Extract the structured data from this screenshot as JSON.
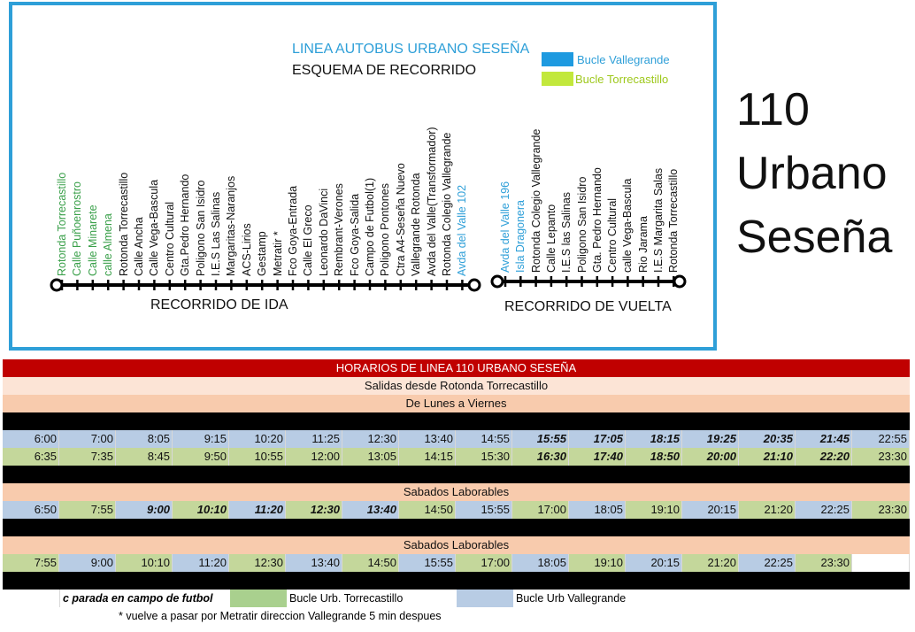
{
  "map": {
    "title": "LINEA AUTOBUS URBANO SESEÑA",
    "subtitle": "ESQUEMA DE RECORRIDO",
    "legend": [
      {
        "label": "Bucle Vallegrande",
        "color": "#1e9ae0"
      },
      {
        "label": "Bucle Torrecastillo",
        "color": "#c2e83c"
      }
    ],
    "ida_label": "RECORRIDO DE IDA",
    "vuelta_label": "RECORRIDO DE VUELTA",
    "stops_ida": [
      {
        "name": "Rotonda Torrecastillo",
        "color": "#3aa04a"
      },
      {
        "name": "Calle Puñoenrostro",
        "color": "#3aa04a"
      },
      {
        "name": "Calle Minarete",
        "color": "#3aa04a"
      },
      {
        "name": "calle Almena",
        "color": "#3aa04a"
      },
      {
        "name": "Rotonda Torrecastillo",
        "color": "#111111"
      },
      {
        "name": "Calle Ancha",
        "color": "#111111"
      },
      {
        "name": "Calle Vega-Bascula",
        "color": "#111111"
      },
      {
        "name": "Centro Cultural",
        "color": "#111111"
      },
      {
        "name": "Gta.Pedro Hernando",
        "color": "#111111"
      },
      {
        "name": "Poligono San Isidro",
        "color": "#111111"
      },
      {
        "name": "I.E.S Las Salinas",
        "color": "#111111"
      },
      {
        "name": "Margaritas-Naranjos",
        "color": "#111111"
      },
      {
        "name": "ACS-Lirios",
        "color": "#111111"
      },
      {
        "name": "Gestamp",
        "color": "#111111"
      },
      {
        "name": "Metratir *",
        "color": "#111111"
      },
      {
        "name": "Fco Goya-Entrada",
        "color": "#111111"
      },
      {
        "name": "Calle El Greco",
        "color": "#111111"
      },
      {
        "name": "Leonardo DaVinci",
        "color": "#111111"
      },
      {
        "name": "Rembrant-Verones",
        "color": "#111111"
      },
      {
        "name": "Fco Goya-Salida",
        "color": "#111111"
      },
      {
        "name": "Campo de Futbol(1)",
        "color": "#111111"
      },
      {
        "name": "Poligono Pontones",
        "color": "#111111"
      },
      {
        "name": "Ctra A4-Seseña Nuevo",
        "color": "#111111"
      },
      {
        "name": "Vallegrande Rotonda",
        "color": "#111111"
      },
      {
        "name": "Avda del Valle(Transformador)",
        "color": "#111111"
      },
      {
        "name": "Rotonda Colegio Vallegrande",
        "color": "#111111"
      },
      {
        "name": "Avda del Valle 102",
        "color": "#2e9fd8"
      }
    ],
    "stops_vuelta": [
      {
        "name": "Avda del Valle 196",
        "color": "#2e9fd8"
      },
      {
        "name": "Isla Dragonera",
        "color": "#2e9fd8"
      },
      {
        "name": "Rotonda Colegio Vallegrande",
        "color": "#111111"
      },
      {
        "name": "Calle Lepanto",
        "color": "#111111"
      },
      {
        "name": "I.E.S las Salinas",
        "color": "#111111"
      },
      {
        "name": "Poligono San Isidro",
        "color": "#111111"
      },
      {
        "name": "Gta. Pedro Hernando",
        "color": "#111111"
      },
      {
        "name": "Centro Cultural",
        "color": "#111111"
      },
      {
        "name": "calle Vega-Bascula",
        "color": "#111111"
      },
      {
        "name": "Rio Jarama",
        "color": "#111111"
      },
      {
        "name": "I.E.S Margarita Salas",
        "color": "#111111"
      },
      {
        "name": "Rotonda Torrecastillo",
        "color": "#111111"
      }
    ]
  },
  "heading": {
    "number": "110",
    "line1": "Urbano",
    "line2": "Seseña"
  },
  "schedule": {
    "title": "HORARIOS DE LINEA 110 URBANO SESEÑA",
    "title_bg": "#c00000",
    "salidas": "Salidas desde Rotonda Torrecastillo",
    "weekdays_label": "De Lunes a Viernes",
    "weekday_row1": [
      {
        "t": "6:00",
        "c": "b"
      },
      {
        "t": "7:00",
        "c": "b"
      },
      {
        "t": "8:05",
        "c": "b"
      },
      {
        "t": "9:15",
        "c": "b"
      },
      {
        "t": "10:20",
        "c": "b"
      },
      {
        "t": "11:25",
        "c": "b"
      },
      {
        "t": "12:30",
        "c": "b"
      },
      {
        "t": "13:40",
        "c": "b"
      },
      {
        "t": "14:55",
        "c": "b"
      },
      {
        "t": "15:55",
        "c": "b",
        "i": true
      },
      {
        "t": "17:05",
        "c": "b",
        "i": true
      },
      {
        "t": "18:15",
        "c": "b",
        "i": true
      },
      {
        "t": "19:25",
        "c": "b",
        "i": true
      },
      {
        "t": "20:35",
        "c": "b",
        "i": true
      },
      {
        "t": "21:45",
        "c": "b",
        "i": true
      },
      {
        "t": "22:55",
        "c": "b"
      }
    ],
    "weekday_row2": [
      {
        "t": "6:35",
        "c": "g"
      },
      {
        "t": "7:35",
        "c": "g"
      },
      {
        "t": "8:45",
        "c": "g"
      },
      {
        "t": "9:50",
        "c": "g"
      },
      {
        "t": "10:55",
        "c": "g"
      },
      {
        "t": "12:00",
        "c": "g"
      },
      {
        "t": "13:05",
        "c": "g"
      },
      {
        "t": "14:15",
        "c": "g"
      },
      {
        "t": "15:30",
        "c": "g"
      },
      {
        "t": "16:30",
        "c": "g",
        "i": true
      },
      {
        "t": "17:40",
        "c": "g",
        "i": true
      },
      {
        "t": "18:50",
        "c": "g",
        "i": true
      },
      {
        "t": "20:00",
        "c": "g",
        "i": true
      },
      {
        "t": "21:10",
        "c": "g",
        "i": true
      },
      {
        "t": "22:20",
        "c": "g",
        "i": true
      },
      {
        "t": "23:30",
        "c": "g"
      }
    ],
    "sat_label_1": "Sabados Laborables",
    "sat_row1": [
      {
        "t": "6:50",
        "c": "b"
      },
      {
        "t": "7:55",
        "c": "g"
      },
      {
        "t": "9:00",
        "c": "b",
        "i": true
      },
      {
        "t": "10:10",
        "c": "g",
        "i": true
      },
      {
        "t": "11:20",
        "c": "b",
        "i": true
      },
      {
        "t": "12:30",
        "c": "g",
        "i": true
      },
      {
        "t": "13:40",
        "c": "b",
        "i": true
      },
      {
        "t": "14:50",
        "c": "g"
      },
      {
        "t": "15:55",
        "c": "b"
      },
      {
        "t": "17:00",
        "c": "g"
      },
      {
        "t": "18:05",
        "c": "b"
      },
      {
        "t": "19:10",
        "c": "g"
      },
      {
        "t": "20:15",
        "c": "b"
      },
      {
        "t": "21:20",
        "c": "g"
      },
      {
        "t": "22:25",
        "c": "b"
      },
      {
        "t": "23:30",
        "c": "g"
      }
    ],
    "sat_label_2": "Sabados Laborables",
    "sat_row2": [
      {
        "t": "7:55",
        "c": "g"
      },
      {
        "t": "9:00",
        "c": "b"
      },
      {
        "t": "10:10",
        "c": "g"
      },
      {
        "t": "11:20",
        "c": "b"
      },
      {
        "t": "12:30",
        "c": "g"
      },
      {
        "t": "13:40",
        "c": "b"
      },
      {
        "t": "14:50",
        "c": "g"
      },
      {
        "t": "15:55",
        "c": "b"
      },
      {
        "t": "17:00",
        "c": "g"
      },
      {
        "t": "18:05",
        "c": "b"
      },
      {
        "t": "19:10",
        "c": "g"
      },
      {
        "t": "20:15",
        "c": "b"
      },
      {
        "t": "21:20",
        "c": "g"
      },
      {
        "t": "22:25",
        "c": "b"
      },
      {
        "t": "23:30",
        "c": "g"
      },
      {
        "t": "",
        "c": "w"
      }
    ],
    "note_futbol": "c parada en campo de futbol",
    "legend_torre": "Bucle Urb. Torrecastillo",
    "legend_valle": "Bucle Urb Vallegrande",
    "note_metratir": "* vuelve a pasar por Metratir direccion Vallegrande 5 min despues",
    "colors": {
      "blue": "#b8cce4",
      "green": "#c4d79b",
      "salmon": "#f8cbad",
      "peach": "#fce4d6",
      "swatch_green": "#a9d08e"
    }
  }
}
